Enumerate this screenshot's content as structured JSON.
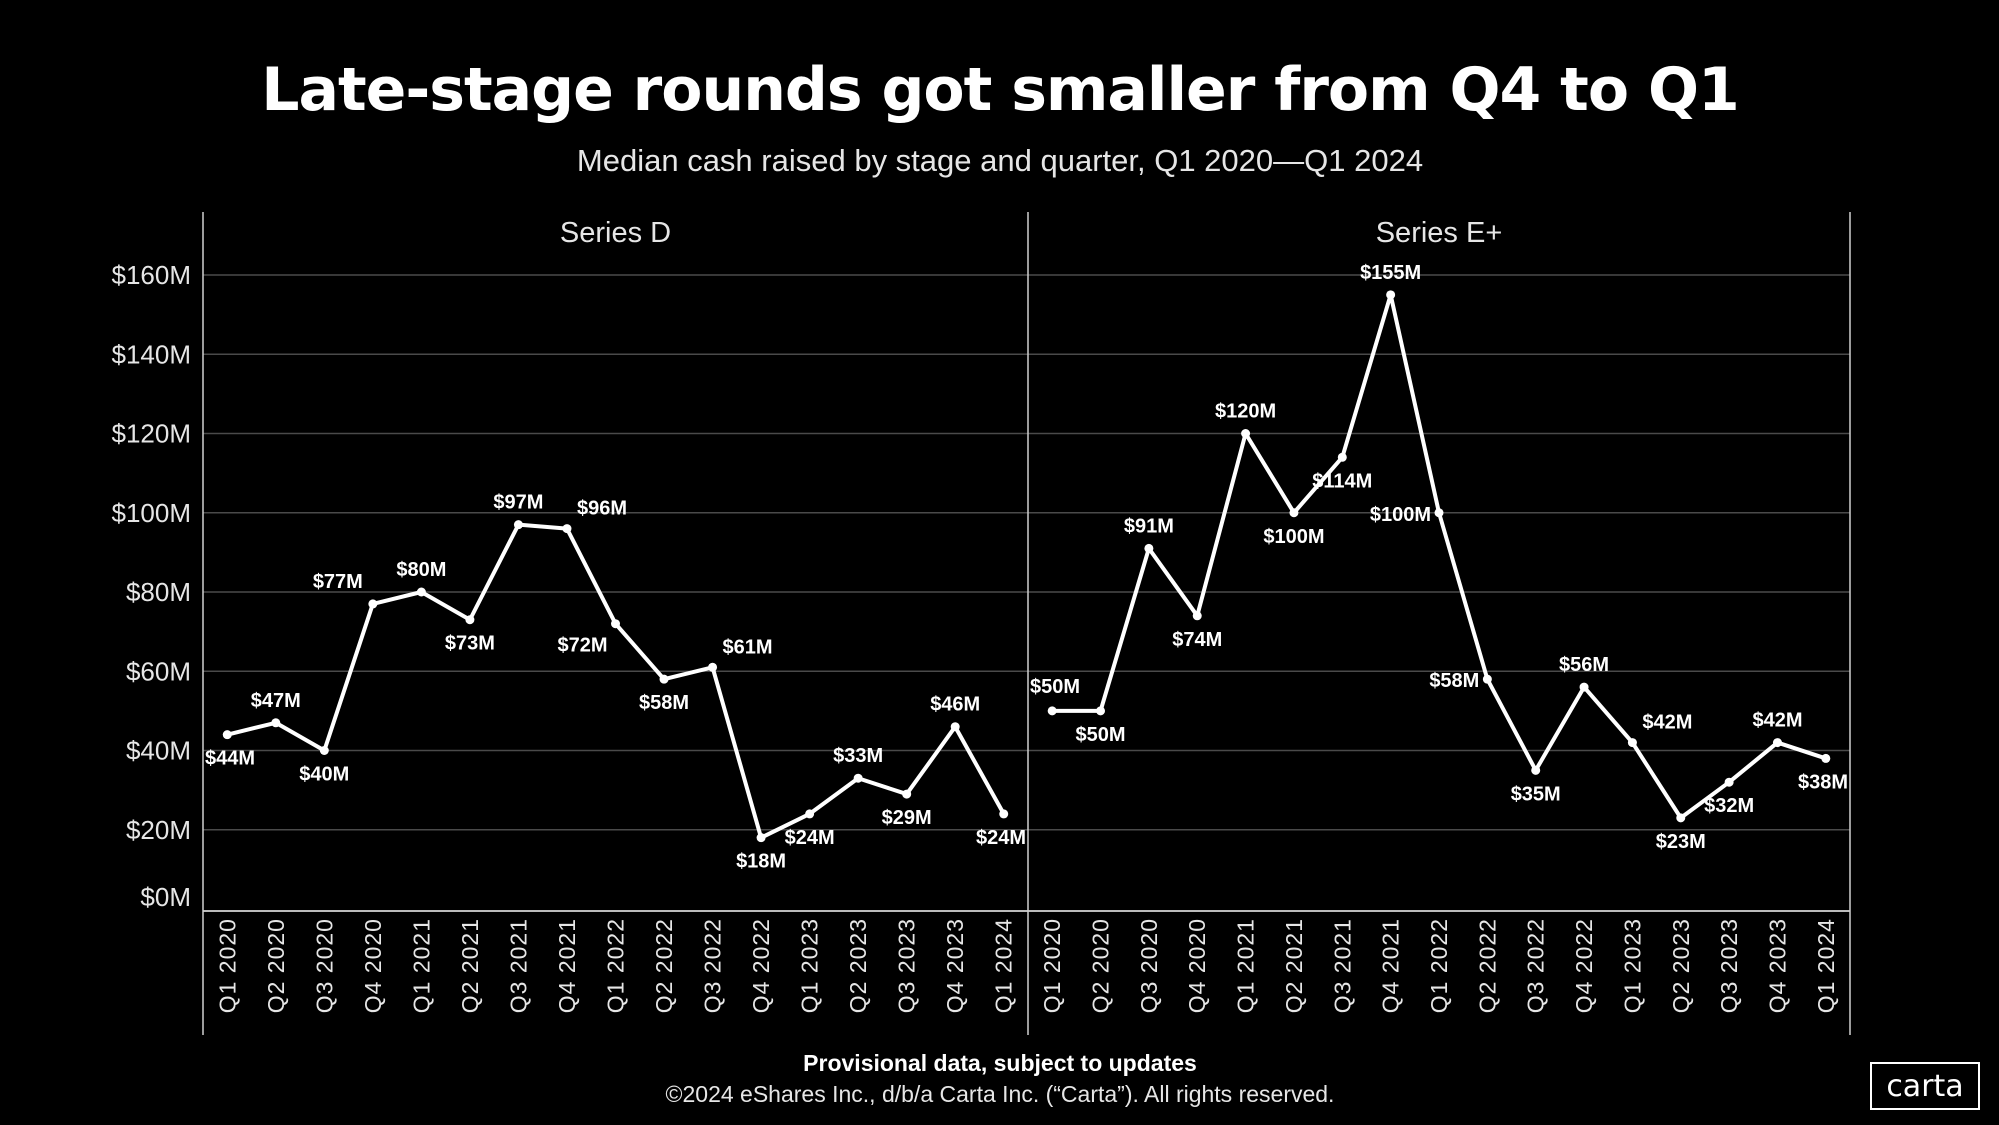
{
  "chart_data": {
    "type": "line",
    "title": "Late-stage rounds got smaller from Q4 to Q1",
    "subtitle": "Median cash raised by stage and quarter, Q1 2020—Q1 2024",
    "xlabel": "",
    "ylabel": "",
    "ylim": [
      0,
      160
    ],
    "yticks": [
      "$0M",
      "$20M",
      "$40M",
      "$60M",
      "$80M",
      "$100M",
      "$120M",
      "$140M",
      "$160M"
    ],
    "ytick_values": [
      0,
      20,
      40,
      60,
      80,
      100,
      120,
      140,
      160
    ],
    "grid": true,
    "categories": [
      "Q1 2020",
      "Q2 2020",
      "Q3 2020",
      "Q4 2020",
      "Q1 2021",
      "Q2 2021",
      "Q3 2021",
      "Q4 2021",
      "Q1 2022",
      "Q2 2022",
      "Q3 2022",
      "Q4 2022",
      "Q1 2023",
      "Q2 2023",
      "Q3 2023",
      "Q4 2023",
      "Q1 2024"
    ],
    "panels": [
      {
        "name": "Series D",
        "values": [
          44,
          47,
          40,
          77,
          80,
          73,
          97,
          96,
          72,
          58,
          61,
          18,
          24,
          33,
          29,
          46,
          24
        ],
        "labels": [
          "$44M",
          "$47M",
          "$40M",
          "$77M",
          "$80M",
          "$73M",
          "$97M",
          "$96M",
          "$72M",
          "$58M",
          "$61M",
          "$18M",
          "$24M",
          "$33M",
          "$29M",
          "$46M",
          "$24M"
        ]
      },
      {
        "name": "Series E+",
        "values": [
          50,
          50,
          91,
          74,
          120,
          100,
          114,
          155,
          100,
          58,
          35,
          56,
          42,
          23,
          32,
          42,
          38
        ],
        "labels": [
          "$50M",
          "$50M",
          "$91M",
          "$74M",
          "$120M",
          "$100M",
          "$114M",
          "$155M",
          "$100M",
          "$58M",
          "$35M",
          "$56M",
          "$42M",
          "$23M",
          "$32M",
          "$42M",
          "$38M"
        ]
      }
    ],
    "line_color": "#ffffff",
    "background": "#000000",
    "gridline_color": "#4a4a4a"
  },
  "footer": {
    "note": "Provisional data, subject to updates",
    "copyright": "©2024 eShares Inc., d/b/a Carta Inc. (“Carta”). All rights reserved.",
    "logo": "carta"
  }
}
